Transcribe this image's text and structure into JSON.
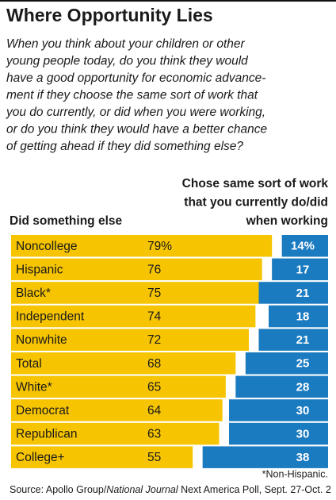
{
  "chart_data": {
    "type": "bar",
    "title": "Where Opportunity Lies",
    "question": [
      "When you think about your children or other",
      "young people today, do you think they would",
      "have a good opportunity for economic advance-",
      "ment if they choose the same sort of work that",
      "you do currently, or did when you were working,",
      "or do you think they would have a better chance",
      "of getting ahead if they did something else?"
    ],
    "categories": [
      "Noncollege",
      "Hispanic",
      "Black*",
      "Independent",
      "Nonwhite",
      "Total",
      "White*",
      "Democrat",
      "Republican",
      "College+"
    ],
    "series": [
      {
        "name": "Did something else",
        "color": "#f6c400",
        "values": [
          79,
          76,
          75,
          74,
          72,
          68,
          65,
          64,
          63,
          55
        ],
        "value_labels": [
          "79%",
          "76",
          "75",
          "74",
          "72",
          "68",
          "65",
          "64",
          "63",
          "55"
        ]
      },
      {
        "name": "Chose same sort of work that you currently do/did when working",
        "color": "#1b7bc1",
        "values": [
          14,
          17,
          21,
          18,
          21,
          25,
          28,
          30,
          30,
          38
        ],
        "value_labels": [
          "14%",
          "17",
          "21",
          "18",
          "21",
          "25",
          "28",
          "30",
          "30",
          "38"
        ]
      }
    ],
    "footnote": "*Non-Hispanic.",
    "source": [
      "Source: Apollo Group/",
      "National Journal",
      " Next America Poll, Sept. 27-Oct. 2"
    ]
  }
}
